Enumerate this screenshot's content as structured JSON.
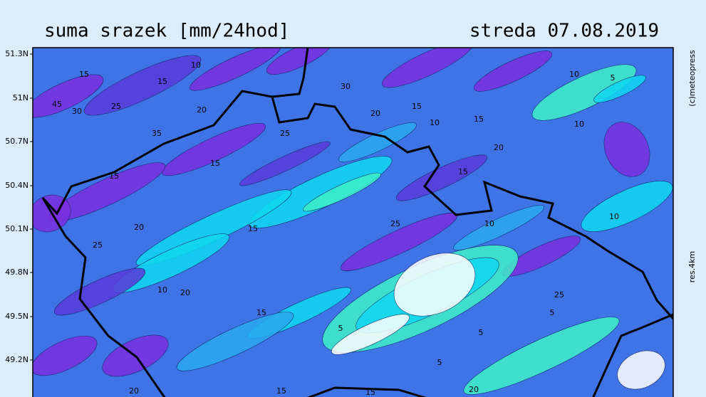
{
  "header": {
    "title": "suma srazek [mm/24hod]",
    "date": "streda 07.08.2019"
  },
  "axis": {
    "latitude_labels": [
      "51.3N",
      "51N",
      "50.7N",
      "50.4N",
      "50.1N",
      "49.8N",
      "49.5N",
      "49.2N"
    ]
  },
  "side": {
    "copyright": "(c)meteopress",
    "resolution": "res.4km"
  },
  "contour_labels": [
    "15",
    "10",
    "15",
    "45",
    "30",
    "25",
    "20",
    "35",
    "15",
    "15",
    "25",
    "20",
    "30",
    "10",
    "15",
    "15",
    "20",
    "15",
    "10",
    "5",
    "10",
    "10",
    "20",
    "25",
    "15",
    "25",
    "10",
    "10",
    "20",
    "15",
    "5",
    "5",
    "5",
    "15",
    "15",
    "20",
    "5",
    "25",
    "20"
  ]
}
